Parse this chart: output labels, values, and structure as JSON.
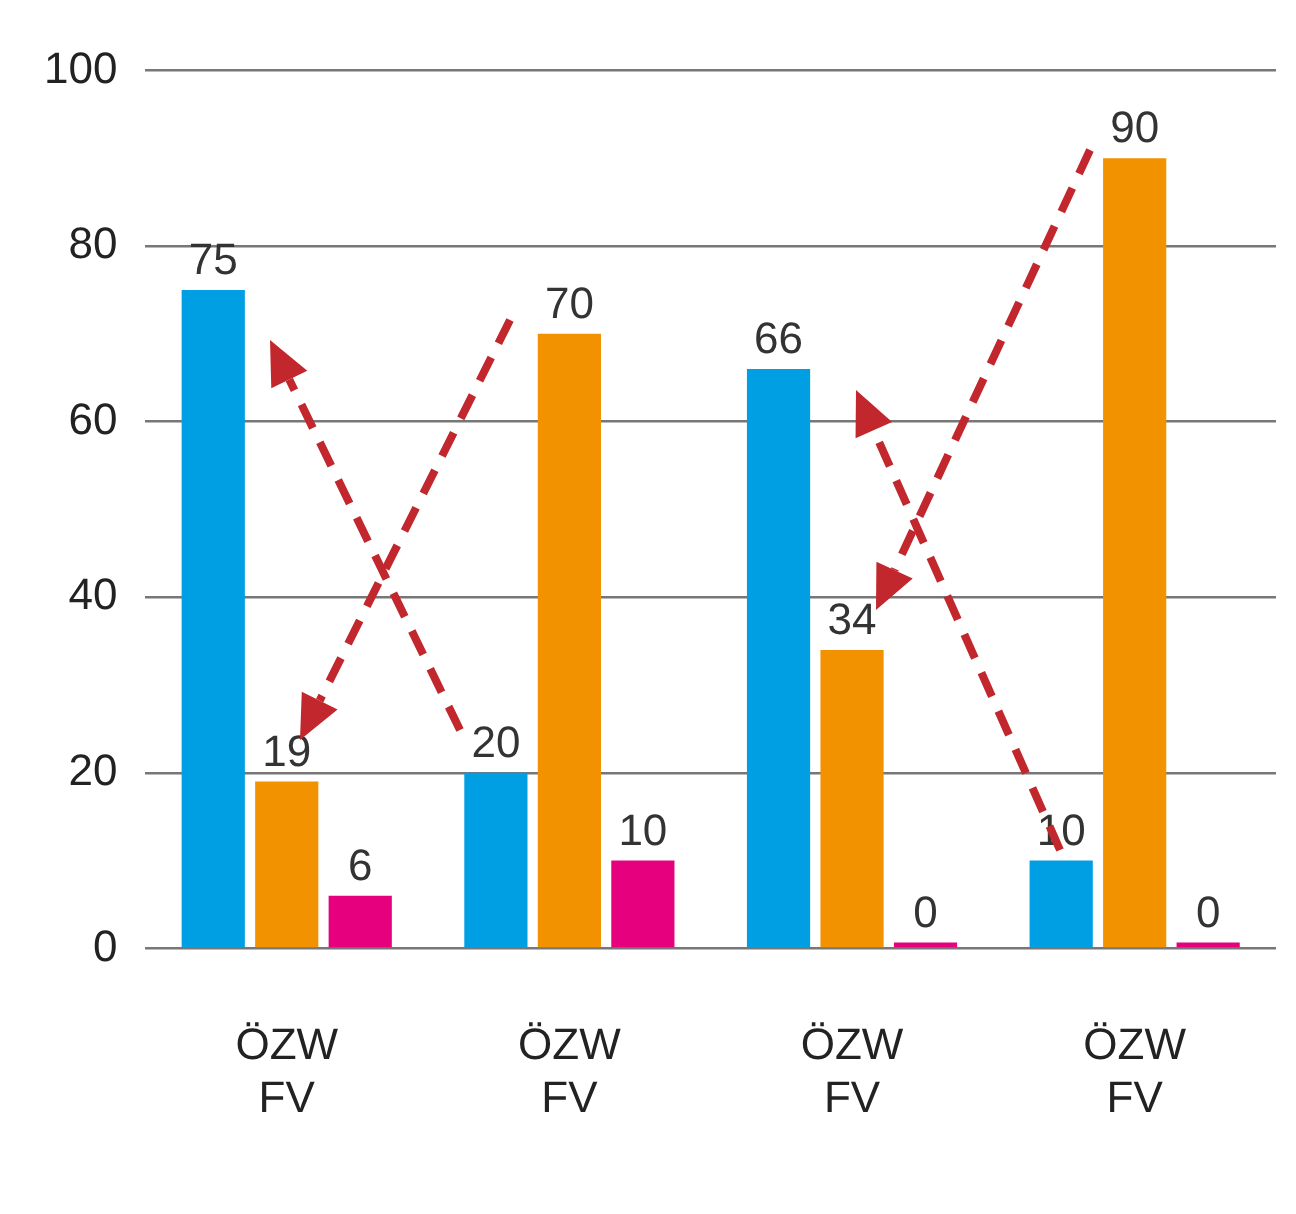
{
  "chart_data": {
    "type": "bar",
    "categories": [
      "ÖZW\nFV",
      "ÖZW\nFV",
      "ÖZW\nFV",
      "ÖZW\nFV"
    ],
    "series": [
      {
        "color": "#009fe3",
        "values": [
          75,
          20,
          66,
          10
        ]
      },
      {
        "color": "#f39200",
        "values": [
          19,
          70,
          34,
          90
        ]
      },
      {
        "color": "#e6007e",
        "values": [
          6,
          10,
          0,
          0
        ]
      }
    ],
    "ylim": [
      0,
      100
    ],
    "yticks": [
      0,
      20,
      40,
      60,
      80,
      100
    ],
    "grid": "y",
    "legend": false,
    "data_labels": true
  }
}
